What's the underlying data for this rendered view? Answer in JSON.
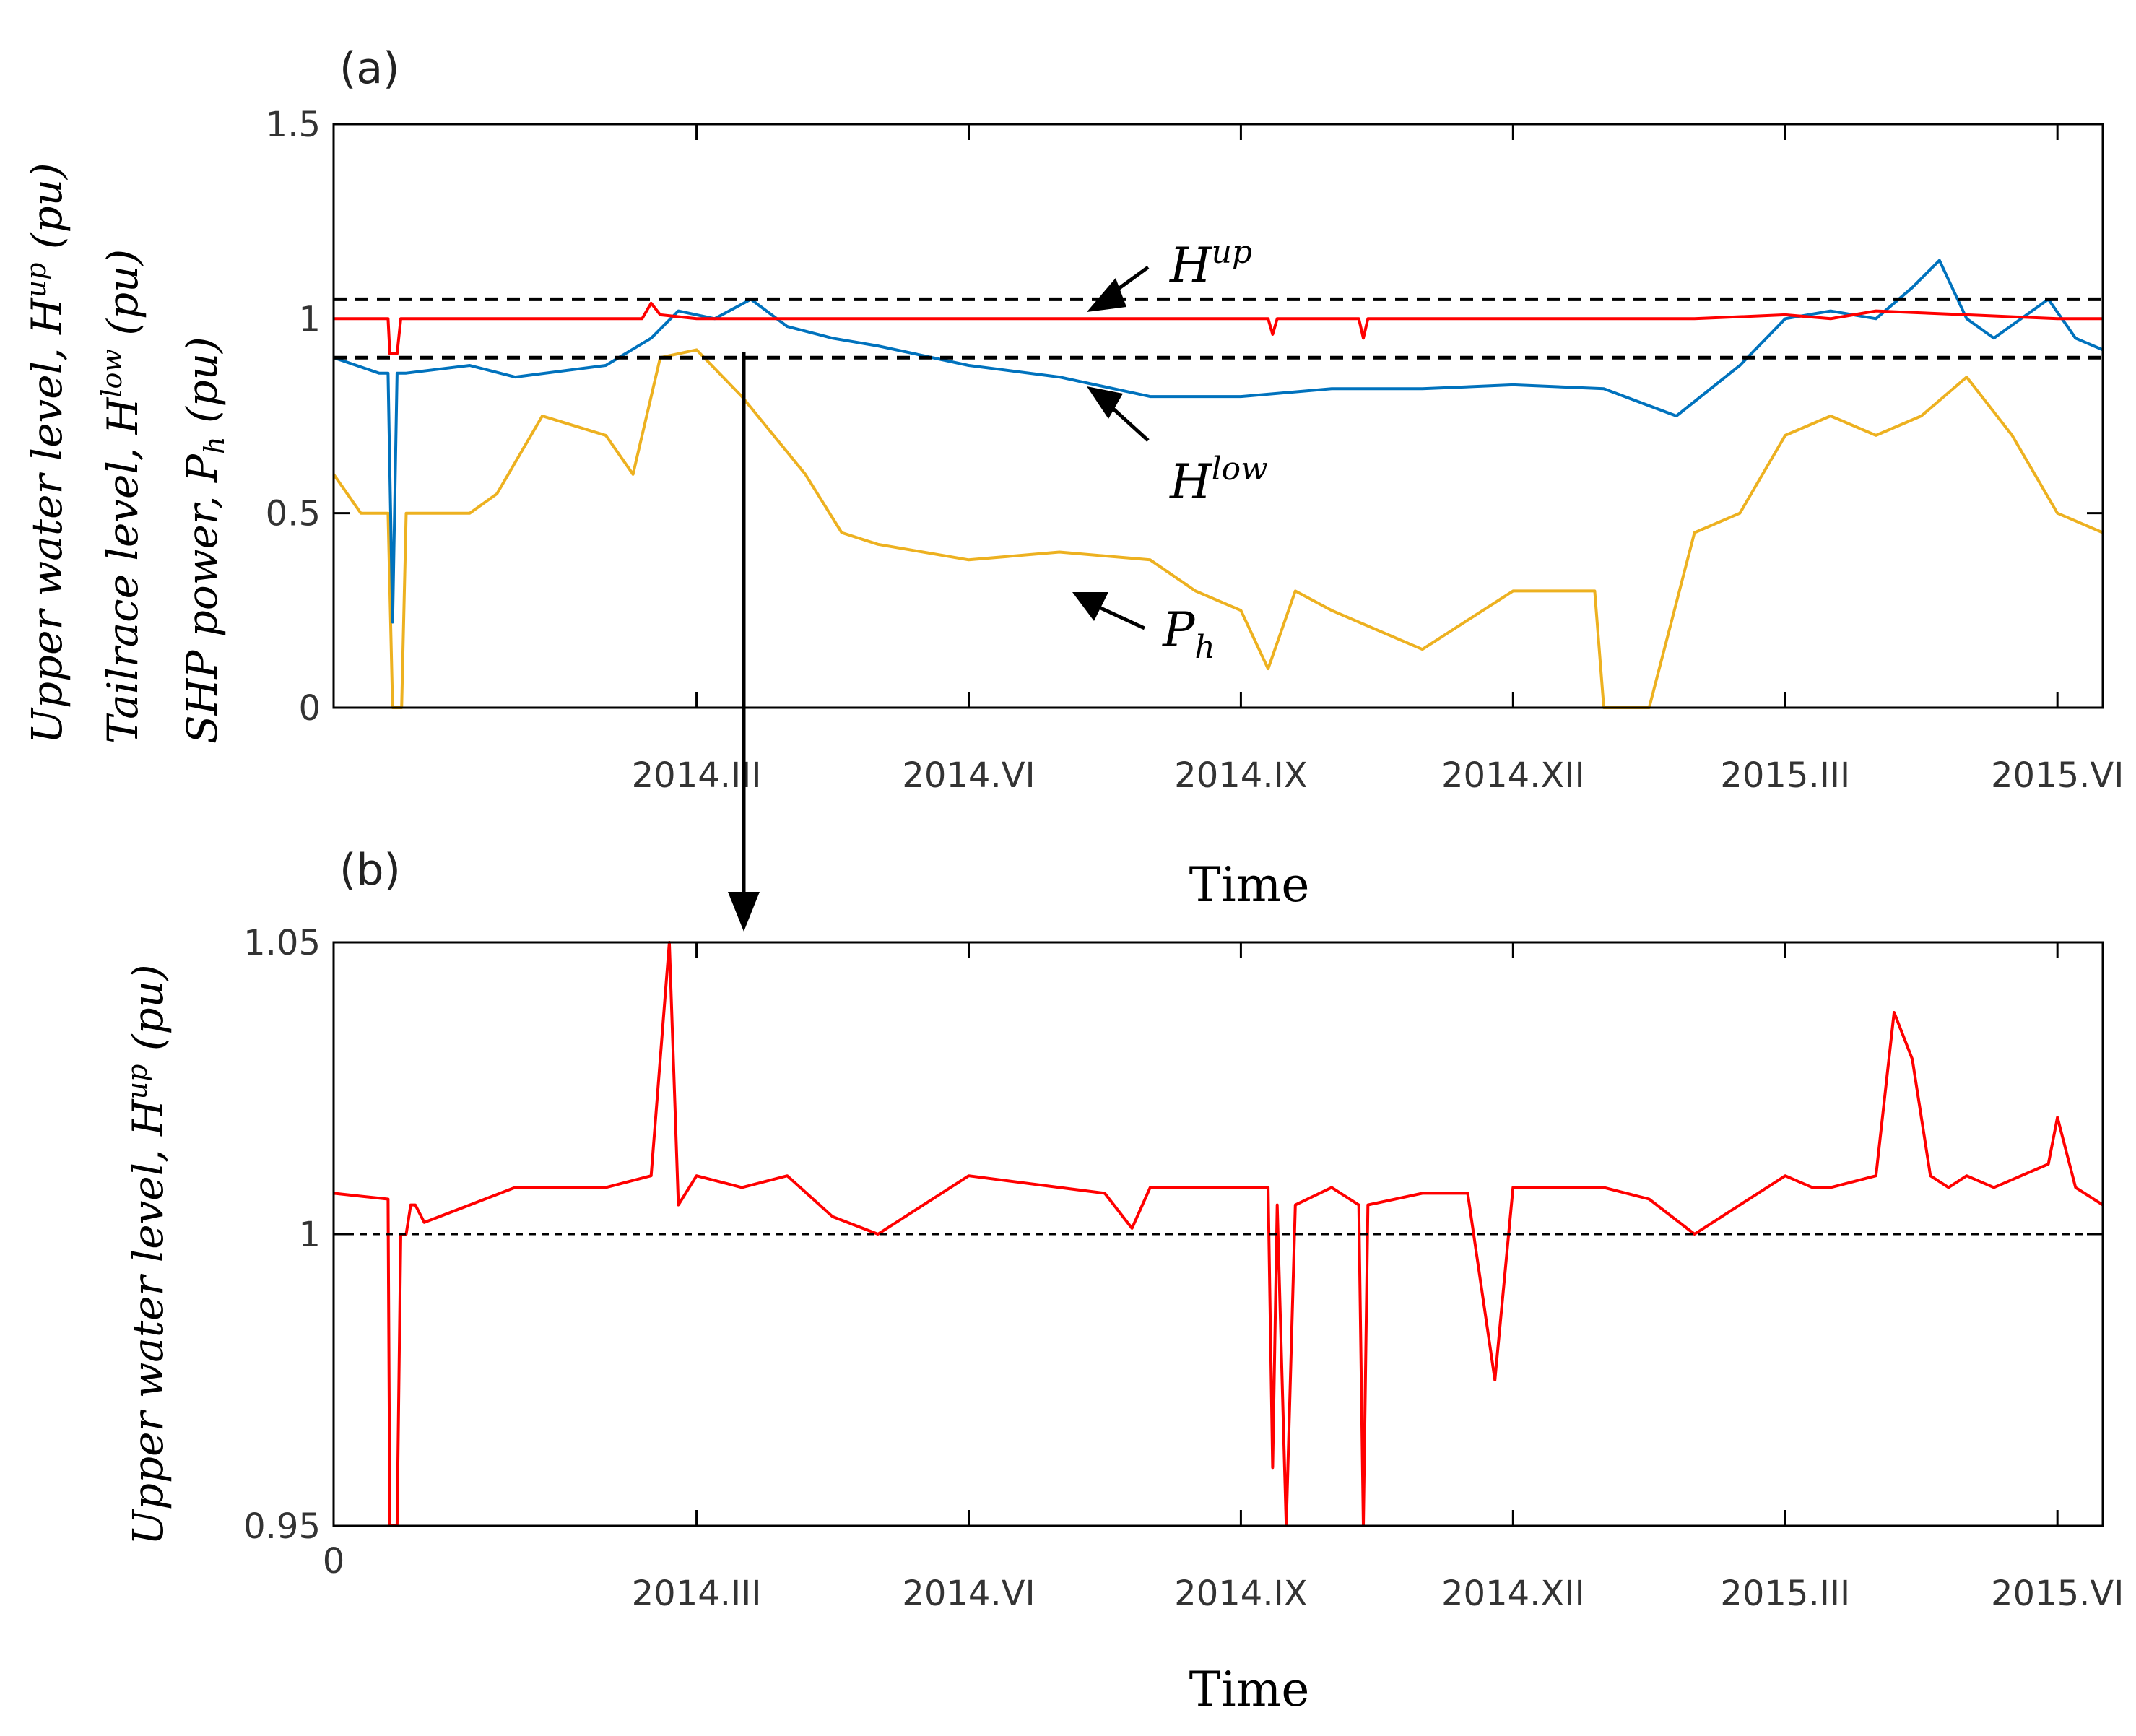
{
  "chart_data": [
    {
      "panel": "(a)",
      "type": "line",
      "xlabel": "Time",
      "ylabel_lines": [
        "Upper water level, H^up (pu)",
        "Tailrace level, H^low (pu)",
        "SHP power, P_h (pu)"
      ],
      "ylim": [
        0,
        1.5
      ],
      "yticks": [
        "0",
        "0.5",
        "1",
        "1.5"
      ],
      "xlim": [
        0,
        19.5
      ],
      "xtick_labels": [
        {
          "month": 4,
          "label": "2014.III"
        },
        {
          "month": 7,
          "label": "2014.VI"
        },
        {
          "month": 10,
          "label": "2014.IX"
        },
        {
          "month": 13,
          "label": "2014.XII"
        },
        {
          "month": 16,
          "label": "2015.III"
        },
        {
          "month": 19,
          "label": "2015.VI"
        }
      ],
      "reference_lines": [
        1.05,
        0.9
      ],
      "annotations": [
        {
          "base": "H",
          "sup": "up",
          "series": "H_up"
        },
        {
          "base": "H",
          "sup": "low",
          "series": "H_low"
        },
        {
          "base": "P",
          "sub": "h",
          "series": "P_h"
        }
      ],
      "series": [
        {
          "name": "H_up",
          "color": "#FF0000",
          "x": [
            0,
            0.6,
            0.62,
            0.7,
            0.74,
            0.8,
            3.4,
            3.5,
            3.6,
            4.0,
            10.3,
            10.35,
            10.4,
            11.3,
            11.35,
            11.4,
            15.0,
            16.0,
            16.5,
            17.0,
            18.0,
            19.0,
            19.5
          ],
          "y": [
            1.0,
            1.0,
            0.91,
            0.91,
            1.0,
            1.0,
            1.0,
            1.04,
            1.01,
            1.0,
            1.0,
            0.96,
            1.0,
            1.0,
            0.95,
            1.0,
            1.0,
            1.01,
            1.0,
            1.02,
            1.01,
            1.0,
            1.0
          ]
        },
        {
          "name": "H_low",
          "color": "#0072BD",
          "x": [
            0,
            0.5,
            0.6,
            0.65,
            0.7,
            0.8,
            1.5,
            2.0,
            3.0,
            3.5,
            3.8,
            4.2,
            4.6,
            5.0,
            5.5,
            6.0,
            7.0,
            8.0,
            9.0,
            10.0,
            11.0,
            12.0,
            13.0,
            14.0,
            14.8,
            15.5,
            16.0,
            16.5,
            17.0,
            17.4,
            17.7,
            18.0,
            18.3,
            18.6,
            18.9,
            19.2,
            19.5
          ],
          "y": [
            0.9,
            0.86,
            0.86,
            0.22,
            0.86,
            0.86,
            0.88,
            0.85,
            0.88,
            0.95,
            1.02,
            1.0,
            1.05,
            0.98,
            0.95,
            0.93,
            0.88,
            0.85,
            0.8,
            0.8,
            0.82,
            0.82,
            0.83,
            0.82,
            0.75,
            0.88,
            1.0,
            1.02,
            1.0,
            1.08,
            1.15,
            1.0,
            0.95,
            1.0,
            1.05,
            0.95,
            0.92
          ]
        },
        {
          "name": "P_h",
          "color": "#EDB120",
          "x": [
            0,
            0.3,
            0.6,
            0.65,
            0.7,
            0.75,
            0.8,
            1.5,
            1.8,
            2.3,
            3.0,
            3.3,
            3.6,
            4.0,
            4.5,
            5.2,
            5.6,
            6.0,
            7.0,
            8.0,
            9.0,
            9.5,
            10.0,
            10.3,
            10.6,
            11.0,
            11.5,
            12.0,
            13.0,
            13.9,
            14.0,
            14.5,
            15.0,
            15.5,
            16.0,
            16.5,
            17.0,
            17.5,
            18.0,
            18.5,
            19.0,
            19.5
          ],
          "y": [
            0.6,
            0.5,
            0.5,
            0.0,
            0.0,
            0.0,
            0.5,
            0.5,
            0.55,
            0.75,
            0.7,
            0.6,
            0.9,
            0.92,
            0.8,
            0.6,
            0.45,
            0.42,
            0.38,
            0.4,
            0.38,
            0.3,
            0.25,
            0.1,
            0.3,
            0.25,
            0.2,
            0.15,
            0.3,
            0.3,
            0.0,
            0.0,
            0.45,
            0.5,
            0.7,
            0.75,
            0.7,
            0.75,
            0.85,
            0.7,
            0.5,
            0.45
          ]
        }
      ]
    },
    {
      "panel": "(b)",
      "type": "line",
      "xlabel": "Time",
      "ylabel": "Upper water level, H^up (pu)",
      "ylim": [
        0.95,
        1.05
      ],
      "yticks": [
        "0.95",
        "1",
        "1.05"
      ],
      "xlim": [
        0,
        19.5
      ],
      "xtick_labels": [
        {
          "month": 0,
          "label": "0"
        },
        {
          "month": 4,
          "label": "2014.III"
        },
        {
          "month": 7,
          "label": "2014.VI"
        },
        {
          "month": 10,
          "label": "2014.IX"
        },
        {
          "month": 13,
          "label": "2014.XII"
        },
        {
          "month": 16,
          "label": "2015.III"
        },
        {
          "month": 19,
          "label": "2015.VI"
        }
      ],
      "reference_lines": [
        1.0
      ],
      "series": [
        {
          "name": "H_up",
          "color": "#FF0000",
          "x": [
            0,
            0.6,
            0.62,
            0.7,
            0.74,
            0.8,
            0.85,
            0.9,
            1.0,
            1.5,
            2.0,
            3.0,
            3.5,
            3.7,
            3.8,
            4.0,
            4.5,
            5.0,
            5.5,
            6.0,
            6.5,
            7.0,
            7.5,
            8.0,
            8.5,
            8.8,
            9.0,
            10.0,
            10.3,
            10.35,
            10.4,
            10.5,
            10.6,
            11.0,
            11.3,
            11.35,
            11.4,
            12.0,
            12.5,
            12.8,
            13.0,
            14.0,
            14.5,
            15.0,
            15.5,
            16.0,
            16.3,
            16.5,
            17.0,
            17.2,
            17.4,
            17.6,
            17.8,
            18.0,
            18.3,
            18.6,
            18.9,
            19.0,
            19.2,
            19.5
          ],
          "y": [
            1.007,
            1.006,
            0.95,
            0.95,
            1.0,
            1.0,
            1.005,
            1.005,
            1.002,
            1.005,
            1.008,
            1.008,
            1.01,
            1.05,
            1.005,
            1.01,
            1.008,
            1.01,
            1.003,
            1.0,
            1.005,
            1.01,
            1.009,
            1.008,
            1.007,
            1.001,
            1.008,
            1.008,
            1.008,
            0.96,
            1.005,
            0.95,
            1.005,
            1.008,
            1.005,
            0.95,
            1.005,
            1.007,
            1.007,
            0.975,
            1.008,
            1.008,
            1.006,
            1.0,
            1.005,
            1.01,
            1.008,
            1.008,
            1.01,
            1.038,
            1.03,
            1.01,
            1.008,
            1.01,
            1.008,
            1.01,
            1.012,
            1.02,
            1.008,
            1.005
          ]
        }
      ]
    }
  ]
}
